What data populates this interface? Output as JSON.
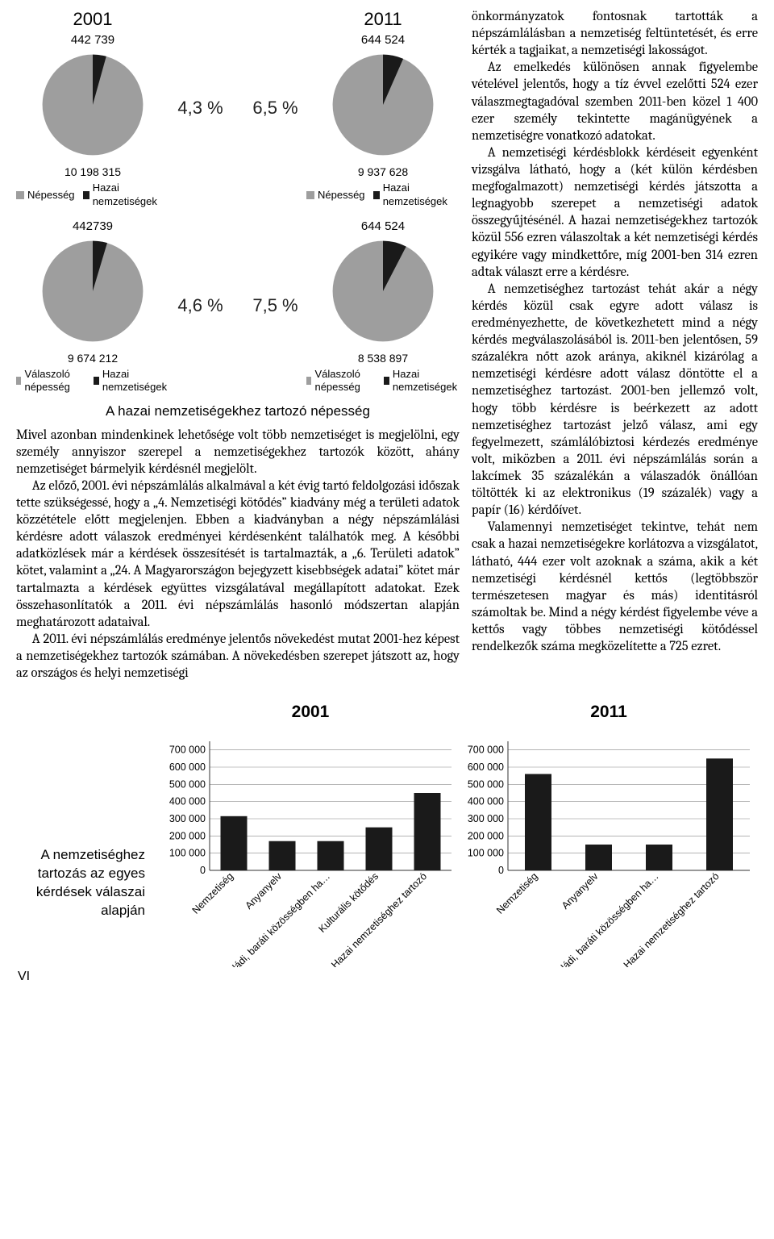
{
  "pie_quadrant": {
    "row1": {
      "left": {
        "year": "2001",
        "top_num": "442 739",
        "bottom_num": "10 198 315",
        "legend_a": "Népesség",
        "legend_b": "Hazai nemzetiségek",
        "pct": 4.3,
        "color_main": "#9e9e9e",
        "color_slice": "#1a1a1a"
      },
      "center_pct": "4,3 %",
      "right": {
        "year": "2011",
        "top_num": "644 524",
        "bottom_num": "9 937 628",
        "legend_a": "Népesség",
        "legend_b": "Hazai nemzetiségek",
        "pct": 6.5,
        "color_main": "#9e9e9e",
        "color_slice": "#1a1a1a"
      },
      "center_pct2": "6,5 %"
    },
    "row2": {
      "left": {
        "top_num": "442739",
        "bottom_num": "9 674 212",
        "legend_a": "Válaszoló népesség",
        "legend_b": "Hazai nemzetiségek",
        "pct": 4.6,
        "color_main": "#9e9e9e",
        "color_slice": "#1a1a1a"
      },
      "center_pct": "4,6 %",
      "right": {
        "top_num": "644 524",
        "bottom_num": "8 538 897",
        "legend_a": "Válaszoló népesség",
        "legend_b": "Hazai nemzetiségek",
        "pct": 7.5,
        "color_main": "#9e9e9e",
        "color_slice": "#1a1a1a"
      },
      "center_pct2": "7,5 %"
    },
    "caption": "A hazai nemzetiségekhez tartozó népesség"
  },
  "left_paragraphs": [
    "Mivel azonban mindenkinek lehetősége volt több nemzetiséget is megjelölni, egy személy annyiszor szerepel a nemzetiségekhez tartozók között, ahány nemzetiséget bármelyik kérdésnél megjelölt.",
    "Az előző, 2001. évi népszámlálás alkalmával a két évig tartó feldolgozási időszak tette szükségessé, hogy a „4. Nemzetiségi kötődés” kiadvány még a területi adatok közzététele előtt megjelenjen. Ebben a kiadványban a négy népszámlálási kérdésre adott válaszok eredményei kérdésenként találhatók meg. A későbbi adatközlések már a kérdések összesítését is tartalmazták, a „6. Területi adatok” kötet, valamint a „24. A Magyarországon bejegyzett kisebbségek adatai” kötet már tartalmazta a kérdések együttes vizsgálatával megállapított adatokat. Ezek összehasonlítatók a 2011. évi népszámlálás hasonló módszertan alapján meghatározott adataival.",
    "A 2011. évi népszámlálás eredménye jelentős növekedést mutat 2001-hez képest a nemzetiségekhez tartozók számában. A növekedésben szerepet játszott az, hogy az országos és helyi nemzetiségi"
  ],
  "right_paragraphs": [
    "önkormányzatok fontosnak tartották a népszámlálásban a nemzetiség feltüntetését, és erre kérték a tagjaikat, a nemzetiségi lakosságot.",
    "Az emelkedés különösen annak figyelembe vételével jelentős, hogy a tíz évvel ezelőtti 524 ezer válaszmegtagadóval szemben 2011-ben közel 1 400 ezer személy tekintette magánügyének a nemzetiségre vonatkozó adatokat.",
    "A nemzetiségi kérdésblokk kérdéseit egyenként vizsgálva látható, hogy a (két külön kérdésben megfogalmazott) nemzetiségi kérdés játszotta a legnagyobb szerepet a nemzetiségi adatok összegyűjtésénél. A hazai nemzetiségekhez tartozók közül 556 ezren válaszoltak a két nemzetiségi kérdés egyikére vagy mindkettőre, míg 2001-ben 314 ezren adtak választ erre a kérdésre.",
    "A nemzetiséghez tartozást tehát akár a négy kérdés közül csak egyre adott válasz is eredményezhette, de következhetett mind a négy kérdés megválaszolásából is. 2011-ben jelentősen, 59 százalékra nőtt azok aránya, akiknél kizárólag a nemzetiségi kérdésre adott válasz döntötte el a nemzetiséghez tartozást. 2001-ben jellemző volt, hogy több kérdésre is beérkezett az adott nemzetiséghez tartozást jelző válasz, ami egy fegyelmezett, számlálóbiztosi kérdezés eredménye volt, miközben a 2011. évi népszámlálás során a lakcímek 35 százalékán a válaszadók önállóan töltötték ki az elektronikus (19 százalék) vagy a papír (16) kérdőívet.",
    "Valamennyi nemzetiséget tekintve, tehát nem csak a hazai nemzetiségekre korlátozva a vizsgálatot, látható, 444 ezer volt azoknak a száma, akik a két nemzetiségi kérdésnél kettős (legtöbbször természetesen magyar és más) identitásról számoltak be. Mind a négy kérdést figyelembe véve a kettős vagy többes nemzetiségi kötődéssel rendelkezők száma megközelítette a 725 ezret."
  ],
  "bar_charts": {
    "side_caption": "A nemzetiséghez tartozás az egyes kérdések válaszai alapján",
    "categories": [
      "Nemzetiség",
      "Anyanyelv",
      "Családi, baráti közösségben ha…",
      "Kulturális kötődés",
      "Hazai nemzetiséghez tartozó"
    ],
    "y_ticks": [
      0,
      100000,
      200000,
      300000,
      400000,
      500000,
      600000,
      700000
    ],
    "y_tick_labels": [
      "0",
      "100 000",
      "200 000",
      "300 000",
      "400 000",
      "500 000",
      "600 000",
      "700 000"
    ],
    "ymax": 750000,
    "chart_2001": {
      "title": "2001",
      "values": [
        315000,
        170000,
        170000,
        250000,
        450000
      ]
    },
    "chart_2011": {
      "title": "2011",
      "values": [
        560000,
        150000,
        150000,
        0,
        650000
      ]
    },
    "bar_color": "#1a1a1a",
    "axis_color": "#888888",
    "bar_width": 0.55
  },
  "page_number": "VI"
}
